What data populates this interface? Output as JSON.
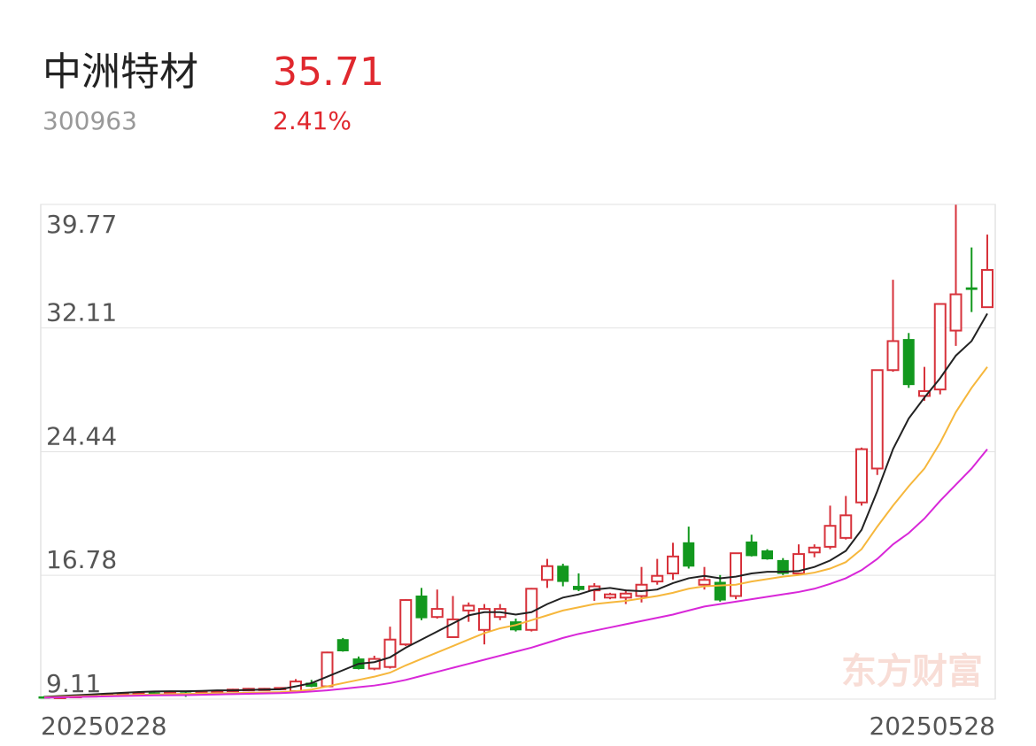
{
  "header": {
    "name": "中洲特材",
    "price": "35.71",
    "code": "300963",
    "change": "2.41%"
  },
  "watermark": "东方财富",
  "chart_data": {
    "type": "candlestick",
    "categories": [
      "20250228",
      null,
      null,
      null,
      null,
      null,
      null,
      null,
      null,
      null,
      null,
      null,
      null,
      null,
      null,
      null,
      null,
      null,
      null,
      null,
      null,
      null,
      null,
      null,
      null,
      null,
      null,
      null,
      null,
      null,
      null,
      null,
      null,
      null,
      null,
      null,
      null,
      null,
      null,
      null,
      null,
      null,
      null,
      null,
      null,
      null,
      null,
      null,
      null,
      null,
      null,
      null,
      null,
      null,
      null,
      null,
      null,
      null,
      null,
      null,
      "20250528"
    ],
    "open": [
      9.25,
      9.2,
      9.25,
      9.3,
      9.35,
      9.4,
      9.45,
      9.5,
      9.45,
      9.5,
      9.4,
      9.5,
      9.6,
      9.65,
      9.7,
      9.75,
      9.6,
      10.1,
      9.9,
      12.8,
      11.6,
      11.0,
      11.1,
      12.5,
      15.5,
      14.2,
      12.95,
      14.6,
      13.4,
      14.2,
      13.9,
      13.4,
      16.5,
      17.35,
      16.1,
      15.85,
      15.4,
      15.4,
      15.5,
      16.4,
      16.9,
      18.8,
      16.2,
      16.35,
      15.5,
      18.85,
      18.3,
      17.7,
      16.9,
      18.2,
      18.55,
      19.1,
      21.3,
      23.4,
      29.5,
      31.4,
      27.9,
      28.3,
      31.95,
      34.6,
      33.4
    ],
    "high": [
      9.3,
      9.3,
      9.35,
      9.4,
      9.45,
      9.5,
      9.55,
      9.55,
      9.55,
      9.55,
      9.6,
      9.65,
      9.75,
      9.8,
      9.8,
      9.85,
      10.35,
      10.3,
      12.05,
      12.9,
      11.75,
      11.8,
      13.6,
      15.3,
      16.0,
      15.9,
      15.5,
      15.1,
      15.0,
      15.0,
      14.1,
      16.0,
      17.8,
      17.5,
      16.9,
      16.3,
      15.7,
      15.9,
      17.3,
      17.8,
      18.8,
      19.8,
      17.3,
      16.8,
      18.15,
      19.3,
      18.4,
      17.85,
      18.7,
      18.7,
      21.1,
      21.7,
      24.7,
      29.5,
      35.1,
      31.8,
      29.7,
      33.6,
      39.75,
      37.1,
      37.9
    ],
    "low": [
      9.15,
      9.15,
      9.2,
      9.25,
      9.3,
      9.35,
      9.4,
      9.4,
      9.4,
      9.25,
      9.35,
      9.45,
      9.55,
      9.6,
      9.65,
      9.7,
      9.55,
      9.85,
      9.85,
      12.05,
      10.95,
      10.9,
      11.0,
      12.4,
      14.0,
      14.1,
      12.9,
      13.9,
      12.5,
      14.0,
      13.3,
      13.3,
      16.0,
      16.1,
      15.8,
      15.2,
      15.3,
      15.0,
      15.1,
      16.2,
      16.5,
      17.2,
      15.9,
      15.15,
      15.3,
      17.95,
      17.75,
      16.8,
      16.8,
      17.9,
      18.4,
      19.0,
      21.1,
      23.0,
      29.4,
      28.4,
      27.6,
      28.0,
      31.0,
      33.1,
      33.4
    ],
    "close": [
      9.2,
      9.25,
      9.3,
      9.35,
      9.4,
      9.45,
      9.5,
      9.45,
      9.5,
      9.4,
      9.55,
      9.6,
      9.7,
      9.75,
      9.75,
      9.8,
      10.2,
      9.9,
      12.0,
      12.1,
      11.0,
      11.6,
      12.8,
      15.25,
      14.15,
      14.7,
      14.05,
      14.9,
      14.7,
      14.7,
      13.4,
      15.95,
      17.35,
      16.4,
      15.9,
      16.1,
      15.6,
      15.65,
      16.2,
      16.75,
      17.95,
      17.35,
      16.5,
      15.25,
      18.15,
      18.0,
      17.8,
      16.9,
      18.1,
      18.5,
      19.85,
      20.5,
      24.6,
      29.5,
      31.3,
      28.6,
      28.2,
      33.6,
      34.2,
      34.5,
      35.71
    ],
    "up_color": "#d7323b",
    "down_color": "#12981e",
    "series": [
      {
        "color": "#222222",
        "values": [
          9.25,
          9.3,
          9.35,
          9.4,
          9.45,
          9.5,
          9.55,
          9.58,
          9.6,
          9.6,
          9.62,
          9.65,
          9.65,
          9.68,
          9.7,
          9.72,
          9.9,
          10.1,
          10.5,
          10.9,
          11.3,
          11.4,
          11.7,
          12.3,
          12.8,
          13.3,
          13.8,
          14.3,
          14.5,
          14.5,
          14.35,
          14.5,
          15.0,
          15.4,
          15.6,
          15.9,
          16.0,
          15.85,
          15.8,
          15.9,
          16.3,
          16.6,
          16.75,
          16.6,
          16.7,
          16.9,
          17.0,
          17.0,
          17.05,
          17.3,
          17.7,
          18.3,
          19.6,
          22.0,
          24.6,
          26.5,
          27.8,
          29.0,
          30.4,
          31.3,
          33.0
        ]
      },
      {
        "color": "#f6b73c",
        "values": [
          9.22,
          9.25,
          9.28,
          9.3,
          9.33,
          9.36,
          9.38,
          9.4,
          9.42,
          9.44,
          9.45,
          9.47,
          9.48,
          9.5,
          9.52,
          9.54,
          9.6,
          9.7,
          9.9,
          10.1,
          10.3,
          10.5,
          10.75,
          11.2,
          11.6,
          12.0,
          12.4,
          12.8,
          13.2,
          13.5,
          13.7,
          14.0,
          14.3,
          14.6,
          14.8,
          15.0,
          15.1,
          15.2,
          15.35,
          15.5,
          15.7,
          15.95,
          16.1,
          16.15,
          16.2,
          16.4,
          16.55,
          16.7,
          16.8,
          16.95,
          17.2,
          17.6,
          18.4,
          19.8,
          21.1,
          22.3,
          23.4,
          25.0,
          26.9,
          28.4,
          29.7
        ]
      },
      {
        "color": "#d827d8",
        "values": [
          9.2,
          9.22,
          9.24,
          9.26,
          9.28,
          9.3,
          9.32,
          9.34,
          9.35,
          9.36,
          9.38,
          9.4,
          9.42,
          9.44,
          9.46,
          9.48,
          9.52,
          9.58,
          9.65,
          9.75,
          9.85,
          9.95,
          10.1,
          10.3,
          10.55,
          10.8,
          11.05,
          11.3,
          11.55,
          11.8,
          12.05,
          12.3,
          12.6,
          12.9,
          13.15,
          13.35,
          13.55,
          13.75,
          13.95,
          14.15,
          14.35,
          14.6,
          14.85,
          15.0,
          15.15,
          15.3,
          15.45,
          15.6,
          15.75,
          15.95,
          16.25,
          16.6,
          17.1,
          17.8,
          18.7,
          19.4,
          20.3,
          21.4,
          22.4,
          23.4,
          24.6
        ]
      }
    ],
    "ylim": [
      9.11,
      39.77
    ],
    "yticks": [
      9.11,
      16.78,
      24.44,
      32.11,
      39.77
    ],
    "grid": true
  }
}
